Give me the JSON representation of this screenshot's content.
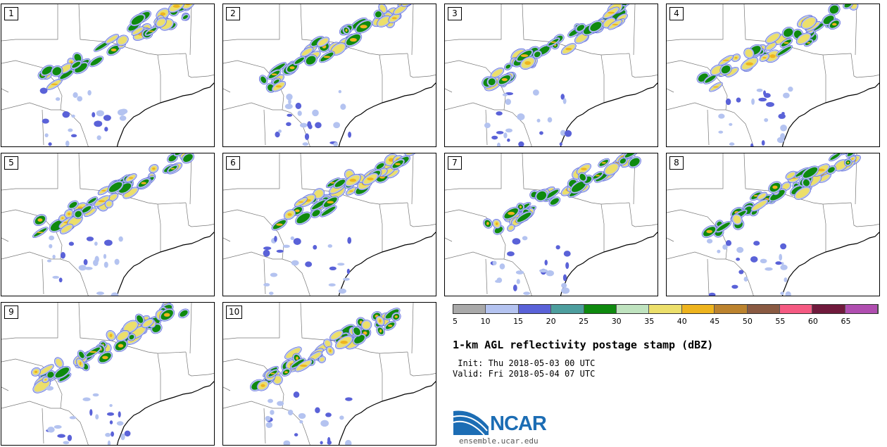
{
  "panels": [
    {
      "label": "1"
    },
    {
      "label": "2"
    },
    {
      "label": "3"
    },
    {
      "label": "4"
    },
    {
      "label": "5"
    },
    {
      "label": "6"
    },
    {
      "label": "7"
    },
    {
      "label": "8"
    },
    {
      "label": "9"
    },
    {
      "label": "10"
    }
  ],
  "colorbar": {
    "colors": [
      "#a9a9a9",
      "#b4c3f0",
      "#5a62d8",
      "#4d9e9e",
      "#0f8a0f",
      "#bfe3bf",
      "#ecdf6b",
      "#eeb41e",
      "#bc832e",
      "#8a5a42",
      "#f55a82",
      "#701a3c",
      "#b04eb0"
    ],
    "ticks": [
      "5",
      "10",
      "15",
      "20",
      "25",
      "30",
      "35",
      "40",
      "45",
      "50",
      "55",
      "60",
      "65"
    ]
  },
  "title": "1-km AGL reflectivity postage stamp (dBZ)",
  "init": " Init: Thu 2018-05-03 00 UTC",
  "valid": "Valid: Fri 2018-05-04 07 UTC",
  "logo": {
    "text": "NCAR",
    "color": "#1c6db4"
  },
  "site": "ensemble.ucar.edu"
}
